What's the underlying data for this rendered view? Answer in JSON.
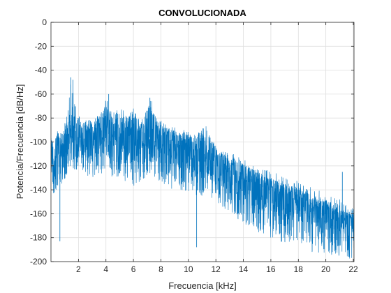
{
  "chart_data": {
    "type": "line",
    "title": "CONVOLUCIONADA",
    "xlabel": "Frecuencia [kHz]",
    "ylabel": "Potencia/Frecuencia [dB/Hz]",
    "xlim": [
      0,
      22.05
    ],
    "ylim": [
      -200,
      0
    ],
    "x_ticks": [
      2,
      4,
      6,
      8,
      10,
      12,
      14,
      16,
      18,
      20,
      22
    ],
    "y_ticks": [
      0,
      -20,
      -40,
      -60,
      -80,
      -100,
      -120,
      -140,
      -160,
      -180,
      -200
    ],
    "grid": true,
    "line_color": "#0072BD",
    "series": [
      {
        "envelope_x": [
          0,
          0.4,
          0.8,
          1.2,
          1.5,
          1.8,
          2.2,
          2.6,
          3.0,
          3.4,
          3.8,
          4.0,
          4.3,
          4.7,
          5.0,
          5.5,
          6.0,
          6.5,
          7.0,
          7.3,
          7.6,
          8.0,
          8.5,
          9.0,
          9.5,
          10.0,
          10.5,
          11.0,
          11.2,
          11.5,
          12.0,
          12.5,
          13.0,
          13.5,
          14.0,
          15.0,
          16.0,
          17.0,
          18.0,
          19.0,
          20.0,
          21.0,
          22.05
        ],
        "upper": [
          -98,
          -90,
          -92,
          -75,
          -47,
          -68,
          -82,
          -82,
          -80,
          -78,
          -70,
          -60,
          -74,
          -75,
          -68,
          -78,
          -72,
          -78,
          -70,
          -64,
          -78,
          -82,
          -87,
          -90,
          -92,
          -95,
          -95,
          -90,
          -82,
          -92,
          -105,
          -110,
          -112,
          -115,
          -118,
          -125,
          -130,
          -135,
          -138,
          -145,
          -148,
          -155,
          -162
        ],
        "center": [
          -115,
          -110,
          -108,
          -100,
          -95,
          -95,
          -96,
          -98,
          -96,
          -94,
          -92,
          -92,
          -94,
          -96,
          -96,
          -98,
          -96,
          -98,
          -96,
          -96,
          -98,
          -100,
          -102,
          -104,
          -106,
          -108,
          -110,
          -110,
          -110,
          -112,
          -118,
          -122,
          -126,
          -128,
          -132,
          -138,
          -142,
          -146,
          -150,
          -155,
          -158,
          -162,
          -168
        ],
        "lower": [
          -150,
          -140,
          -135,
          -128,
          -125,
          -124,
          -122,
          -128,
          -130,
          -130,
          -128,
          -128,
          -130,
          -132,
          -132,
          -135,
          -138,
          -135,
          -130,
          -128,
          -130,
          -135,
          -138,
          -140,
          -140,
          -142,
          -145,
          -145,
          -140,
          -145,
          -150,
          -155,
          -160,
          -165,
          -168,
          -175,
          -180,
          -185,
          -188,
          -192,
          -194,
          -196,
          -198
        ],
        "spikes": [
          {
            "x": 1.45,
            "y": -46
          },
          {
            "x": 1.6,
            "y": -48
          },
          {
            "x": 4.2,
            "y": -60
          },
          {
            "x": 7.2,
            "y": -63
          },
          {
            "x": 0.65,
            "y": -183
          },
          {
            "x": 10.6,
            "y": -188
          },
          {
            "x": 21.2,
            "y": -125
          }
        ]
      }
    ]
  }
}
